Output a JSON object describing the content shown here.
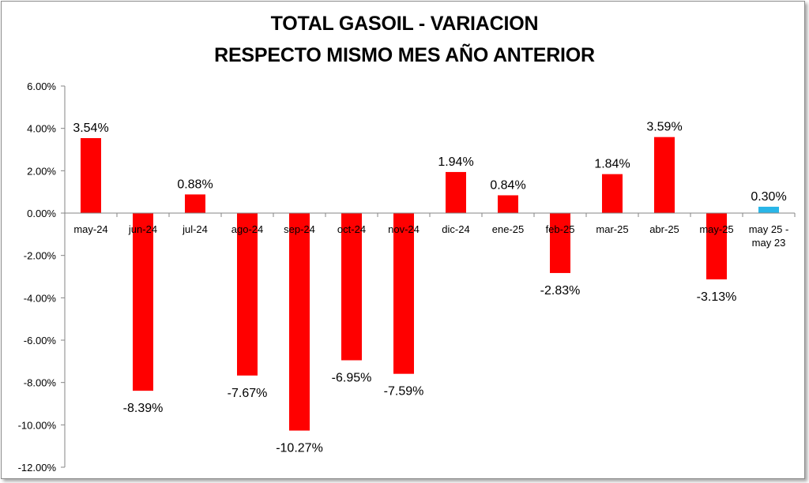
{
  "chart_data": {
    "type": "bar",
    "title_line1": "TOTAL GASOIL - VARIACION",
    "title_line2": "RESPECTO MISMO MES AÑO ANTERIOR",
    "categories": [
      "may-24",
      "jun-24",
      "jul-24",
      "ago-24",
      "sep-24",
      "oct-24",
      "nov-24",
      "dic-24",
      "ene-25",
      "feb-25",
      "mar-25",
      "abr-25",
      "may-25",
      "may 25 - may 23"
    ],
    "values": [
      3.54,
      -8.39,
      0.88,
      -7.67,
      -10.27,
      -6.95,
      -7.59,
      1.94,
      0.84,
      -2.83,
      1.84,
      3.59,
      -3.13,
      0.3
    ],
    "data_labels": [
      "3.54%",
      "-8.39%",
      "0.88%",
      "-7.67%",
      "-10.27%",
      "-6.95%",
      "-7.59%",
      "1.94%",
      "0.84%",
      "-2.83%",
      "1.84%",
      "3.59%",
      "-3.13%",
      "0.30%"
    ],
    "ylim": [
      -12,
      6
    ],
    "y_ticks": [
      "6.00%",
      "4.00%",
      "2.00%",
      "0.00%",
      "-2.00%",
      "-4.00%",
      "-6.00%",
      "-8.00%",
      "-10.00%",
      "-12.00%"
    ],
    "y_tick_values": [
      6,
      4,
      2,
      0,
      -2,
      -4,
      -6,
      -8,
      -10,
      -12
    ],
    "grid": false,
    "legend": "none",
    "colors": {
      "bar": "#ff0000",
      "highlight_bar": "#29b6e8",
      "axis": "#868686"
    },
    "highlight_index": 13
  }
}
